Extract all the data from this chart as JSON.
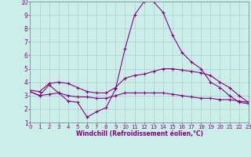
{
  "xlabel": "Windchill (Refroidissement éolien,°C)",
  "background_color": "#cceee8",
  "grid_color": "#aacccc",
  "line_color": "#880088",
  "xlim": [
    0,
    23
  ],
  "ylim": [
    1,
    10
  ],
  "xticks": [
    0,
    1,
    2,
    3,
    4,
    5,
    6,
    7,
    8,
    9,
    10,
    11,
    12,
    13,
    14,
    15,
    16,
    17,
    18,
    19,
    20,
    21,
    22,
    23
  ],
  "yticks": [
    1,
    2,
    3,
    4,
    5,
    6,
    7,
    8,
    9,
    10
  ],
  "line1_x": [
    0,
    1,
    2,
    3,
    4,
    5,
    6,
    7,
    8,
    9,
    10,
    11,
    12,
    13,
    14,
    15,
    16,
    17,
    18,
    19,
    20,
    21,
    22,
    23
  ],
  "line1_y": [
    3.3,
    3.0,
    3.8,
    3.2,
    2.6,
    2.5,
    1.4,
    1.8,
    2.1,
    3.5,
    6.5,
    9.0,
    10.0,
    10.0,
    9.2,
    7.5,
    6.2,
    5.5,
    5.0,
    4.0,
    3.6,
    3.0,
    2.5,
    2.4
  ],
  "line2_x": [
    0,
    1,
    2,
    3,
    4,
    5,
    6,
    7,
    8,
    9,
    10,
    11,
    12,
    13,
    14,
    15,
    16,
    17,
    18,
    19,
    20,
    21,
    22,
    23
  ],
  "line2_y": [
    3.4,
    3.3,
    3.9,
    4.0,
    3.9,
    3.6,
    3.3,
    3.2,
    3.2,
    3.6,
    4.3,
    4.5,
    4.6,
    4.8,
    5.0,
    5.0,
    4.9,
    4.8,
    4.7,
    4.5,
    4.0,
    3.6,
    3.0,
    2.5
  ],
  "line3_x": [
    0,
    1,
    2,
    3,
    4,
    5,
    6,
    7,
    8,
    9,
    10,
    11,
    12,
    13,
    14,
    15,
    16,
    17,
    18,
    19,
    20,
    21,
    22,
    23
  ],
  "line3_y": [
    3.3,
    3.0,
    3.1,
    3.2,
    3.0,
    2.9,
    2.9,
    2.8,
    2.8,
    3.0,
    3.2,
    3.2,
    3.2,
    3.2,
    3.2,
    3.1,
    3.0,
    2.9,
    2.8,
    2.8,
    2.7,
    2.7,
    2.6,
    2.5
  ],
  "tick_labelsize": 5,
  "xlabel_fontsize": 5.5
}
